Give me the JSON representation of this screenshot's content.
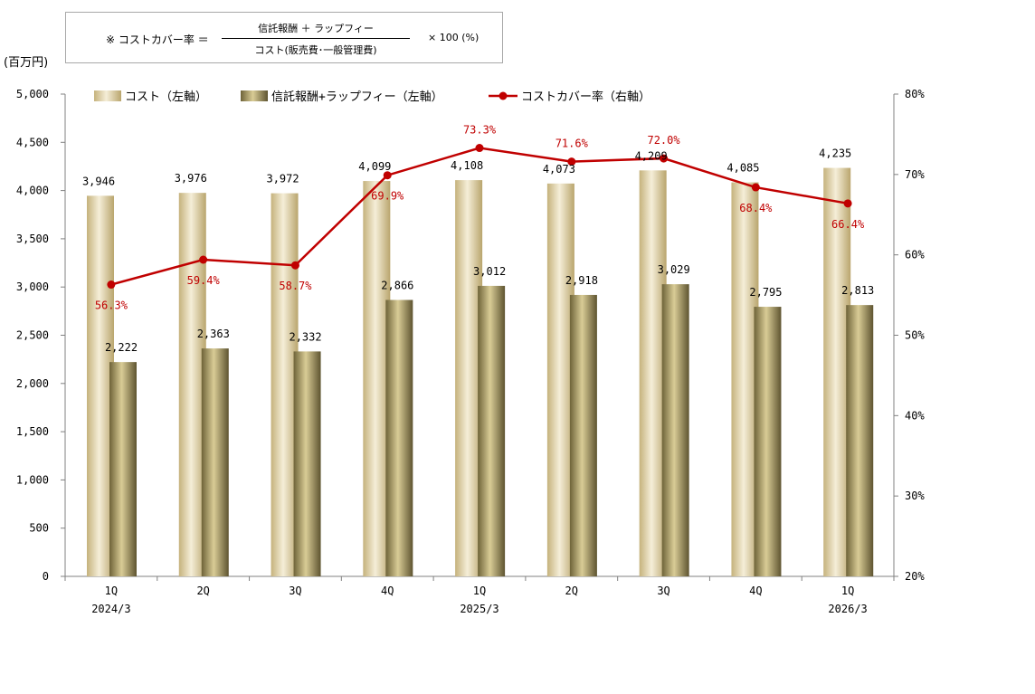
{
  "formula": {
    "prefix": "※ コストカバー率 ＝",
    "numerator": "信託報酬 ＋ ラップフィー",
    "denominator": "コスト(販売費･一般管理費)",
    "suffix": "× 100 (%)"
  },
  "unit_label": "(百万円)",
  "chart_data": {
    "type": "bar",
    "categories": [
      "1Q",
      "2Q",
      "3Q",
      "4Q",
      "1Q",
      "2Q",
      "3Q",
      "4Q",
      "1Q"
    ],
    "period_labels": [
      "2024/3",
      "",
      "",
      "",
      "2025/3",
      "",
      "",
      "",
      "2026/3"
    ],
    "series": [
      {
        "name": "コスト（左軸）",
        "type": "bar",
        "axis": "left",
        "values": [
          3946,
          3976,
          3972,
          4099,
          4108,
          4073,
          4209,
          4085,
          4235
        ],
        "labels": [
          "3,946",
          "3,976",
          "3,972",
          "4,099",
          "4,108",
          "4,073",
          "4,209",
          "4,085",
          "4,235"
        ]
      },
      {
        "name": "信託報酬+ラップフィー（左軸）",
        "type": "bar",
        "axis": "left",
        "values": [
          2222,
          2363,
          2332,
          2866,
          3012,
          2918,
          3029,
          2795,
          2813
        ],
        "labels": [
          "2,222",
          "2,363",
          "2,332",
          "2,866",
          "3,012",
          "2,918",
          "3,029",
          "2,795",
          "2,813"
        ]
      },
      {
        "name": "コストカバー率（右軸）",
        "type": "line",
        "axis": "right",
        "values": [
          56.3,
          59.4,
          58.7,
          69.9,
          73.3,
          71.6,
          72.0,
          68.4,
          66.4
        ],
        "labels": [
          "56.3%",
          "59.4%",
          "58.7%",
          "69.9%",
          "73.3%",
          "71.6%",
          "72.0%",
          "68.4%",
          "66.4%"
        ]
      }
    ],
    "y_left": {
      "min": 0,
      "max": 5000,
      "step": 500,
      "ticks": [
        "0",
        "500",
        "1,000",
        "1,500",
        "2,000",
        "2,500",
        "3,000",
        "3,500",
        "4,000",
        "4,500",
        "5,000"
      ]
    },
    "y_right": {
      "min": 20,
      "max": 80,
      "step": 10,
      "ticks": [
        "20%",
        "30%",
        "40%",
        "50%",
        "60%",
        "70%",
        "80%"
      ]
    },
    "legend_position": "top",
    "grid": false,
    "colors": {
      "cost": "#d8c89a",
      "fee": "#8f8250",
      "ratio": "#c00000"
    }
  }
}
